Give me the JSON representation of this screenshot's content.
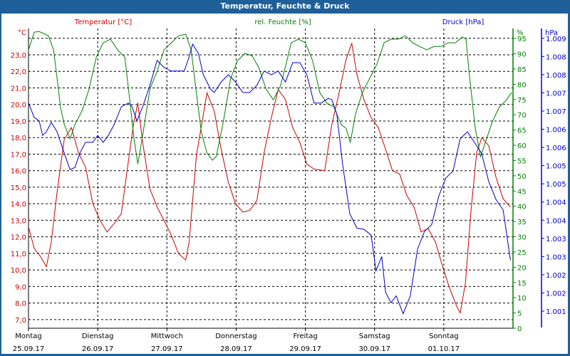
{
  "window": {
    "title": "Temperatur, Feuchte & Druck"
  },
  "colors": {
    "temperature": "#cc0000",
    "humidity": "#008000",
    "pressure": "#0000cc",
    "frame": "#1f5f99"
  },
  "chart_data": {
    "type": "line",
    "title": "Temperatur, Feuchte & Druck",
    "x_unit": "hours since Montag 25.09.17 00:00",
    "xlim": [
      0,
      168
    ],
    "days": [
      {
        "name": "Montag",
        "date": "25.09.17"
      },
      {
        "name": "Dienstag",
        "date": "26.09.17"
      },
      {
        "name": "Mittwoch",
        "date": "27.09.17"
      },
      {
        "name": "Donnerstag",
        "date": "28.09.17"
      },
      {
        "name": "Freitag",
        "date": "29.09.17"
      },
      {
        "name": "Samstag",
        "date": "30.09.17"
      },
      {
        "name": "Sonntag",
        "date": "01.10.17"
      }
    ],
    "grid": true,
    "axes": {
      "temperature": {
        "label": "Temperatur [°C]",
        "unit": "°C",
        "ylim": [
          6.48,
          24.59
        ],
        "ticks": [
          7,
          8,
          9,
          10,
          11,
          12,
          13,
          14,
          15,
          16,
          17,
          18,
          19,
          20,
          21,
          22,
          23
        ],
        "tick_labels": [
          "7,0",
          "8,0",
          "9,0",
          "10,0",
          "11,0",
          "12,0",
          "13,0",
          "14,0",
          "15,0",
          "16,0",
          "17,0",
          "18,0",
          "19,0",
          "20,0",
          "21,0",
          "22,0",
          "23,0"
        ],
        "grid_values": [
          7,
          8,
          9,
          10,
          11,
          12,
          13,
          14,
          15,
          16,
          17,
          18,
          19,
          20,
          21,
          22,
          23,
          24
        ]
      },
      "humidity": {
        "label": "rel. Feuchte [%]",
        "unit": "%",
        "ylim": [
          0,
          98.3
        ],
        "ticks": [
          0,
          5,
          10,
          15,
          20,
          25,
          30,
          35,
          40,
          45,
          50,
          55,
          60,
          65,
          70,
          75,
          80,
          85,
          90,
          95
        ],
        "tick_labels": [
          "0",
          "5",
          "10",
          "15",
          "20",
          "25",
          "30",
          "35",
          "40",
          "45",
          "50",
          "55",
          "60",
          "65",
          "70",
          "75",
          "80",
          "85",
          "90",
          "95"
        ]
      },
      "pressure": {
        "label": "Druck [hPa]",
        "unit": "hPa",
        "ylim": [
          1000.93,
          1009.17
        ],
        "ticks": [
          1008.9,
          1008.4,
          1007.9,
          1007.4,
          1006.9,
          1006.4,
          1005.9,
          1005.4,
          1004.9,
          1004.4,
          1003.9,
          1003.4,
          1002.9,
          1002.4,
          1001.9,
          1001.4
        ],
        "tick_labels": [
          "1.009",
          "1.008",
          "1.008",
          "1.007",
          "1.007",
          "1.006",
          "1.006",
          "1.005",
          "1.005",
          "1.004",
          "1.004",
          "1.003",
          "1.003",
          "1.002",
          "1.002",
          "1.001"
        ]
      }
    },
    "series": [
      {
        "name": "Temperatur",
        "axis": "temperature",
        "points": [
          [
            0,
            12.6
          ],
          [
            2,
            11.3
          ],
          [
            4.2,
            10.8
          ],
          [
            6.2,
            10.2
          ],
          [
            7.9,
            11.7
          ],
          [
            9.9,
            14.7
          ],
          [
            12.4,
            17.9
          ],
          [
            14.9,
            18.6
          ],
          [
            17.3,
            17.1
          ],
          [
            19.8,
            16.2
          ],
          [
            22.3,
            14.0
          ],
          [
            24.8,
            13.0
          ],
          [
            27.2,
            12.3
          ],
          [
            29.7,
            12.8
          ],
          [
            32.2,
            13.4
          ],
          [
            34.2,
            16.0
          ],
          [
            36.4,
            18.8
          ],
          [
            37.9,
            20.1
          ],
          [
            39.6,
            17.7
          ],
          [
            42.1,
            14.9
          ],
          [
            44.6,
            13.8
          ],
          [
            47.0,
            13.0
          ],
          [
            49.5,
            12.1
          ],
          [
            52.0,
            11.0
          ],
          [
            54.5,
            10.6
          ],
          [
            55.7,
            11.7
          ],
          [
            58.2,
            16.9
          ],
          [
            61.9,
            20.7
          ],
          [
            64.4,
            19.6
          ],
          [
            66.8,
            17.3
          ],
          [
            69.3,
            15.3
          ],
          [
            71.8,
            14.0
          ],
          [
            74.3,
            13.5
          ],
          [
            76.7,
            13.6
          ],
          [
            79.2,
            14.2
          ],
          [
            81.7,
            17.1
          ],
          [
            84.2,
            19.2
          ],
          [
            86.6,
            20.9
          ],
          [
            89.1,
            20.3
          ],
          [
            91.6,
            18.6
          ],
          [
            94.1,
            17.7
          ],
          [
            96.5,
            16.4
          ],
          [
            99.0,
            16.1
          ],
          [
            102.7,
            16.0
          ],
          [
            105.2,
            18.8
          ],
          [
            107.7,
            20.7
          ],
          [
            110.1,
            22.7
          ],
          [
            112.1,
            23.7
          ],
          [
            113.9,
            21.8
          ],
          [
            116.3,
            20.3
          ],
          [
            118.8,
            19.2
          ],
          [
            121.3,
            18.6
          ],
          [
            123.8,
            17.3
          ],
          [
            126.2,
            16.0
          ],
          [
            128.7,
            15.8
          ],
          [
            131.2,
            14.5
          ],
          [
            133.7,
            13.8
          ],
          [
            136.1,
            12.3
          ],
          [
            138.6,
            12.5
          ],
          [
            141.1,
            11.7
          ],
          [
            143.6,
            10.2
          ],
          [
            146.0,
            8.9
          ],
          [
            148.5,
            7.8
          ],
          [
            149.7,
            7.4
          ],
          [
            151.5,
            9.2
          ],
          [
            153.4,
            13.5
          ],
          [
            155.4,
            17.1
          ],
          [
            157.2,
            18.0
          ],
          [
            159.6,
            17.5
          ],
          [
            162.1,
            15.6
          ],
          [
            164.6,
            14.3
          ],
          [
            167.1,
            13.8
          ]
        ]
      },
      {
        "name": "rel. Feuchte",
        "axis": "humidity",
        "points": [
          [
            0,
            91.3
          ],
          [
            2,
            97.1
          ],
          [
            3.7,
            97.3
          ],
          [
            6.9,
            95.9
          ],
          [
            8.7,
            91.3
          ],
          [
            9.9,
            81.9
          ],
          [
            11.1,
            72.6
          ],
          [
            12.4,
            66.8
          ],
          [
            14.4,
            62.1
          ],
          [
            16.1,
            66.8
          ],
          [
            18.6,
            71.4
          ],
          [
            21.0,
            78.4
          ],
          [
            23.5,
            88.9
          ],
          [
            25.9,
            93.6
          ],
          [
            28.4,
            94.8
          ],
          [
            30.9,
            91.3
          ],
          [
            33.4,
            88.9
          ],
          [
            35.1,
            74.9
          ],
          [
            36.6,
            62.1
          ],
          [
            37.9,
            53.9
          ],
          [
            39.6,
            63.3
          ],
          [
            42.1,
            78.4
          ],
          [
            44.6,
            84.3
          ],
          [
            47.0,
            91.3
          ],
          [
            49.5,
            93.6
          ],
          [
            52.0,
            95.9
          ],
          [
            54.5,
            96.4
          ],
          [
            56.4,
            91.3
          ],
          [
            58.2,
            77.3
          ],
          [
            59.9,
            64.4
          ],
          [
            61.9,
            57.4
          ],
          [
            63.8,
            55.1
          ],
          [
            65.1,
            56.3
          ],
          [
            67.6,
            67.9
          ],
          [
            70.1,
            81.9
          ],
          [
            72.5,
            87.8
          ],
          [
            75.0,
            90.1
          ],
          [
            77.5,
            89.4
          ],
          [
            79.9,
            85.4
          ],
          [
            82.4,
            78.4
          ],
          [
            84.9,
            74.9
          ],
          [
            87.4,
            79.6
          ],
          [
            89.3,
            86.6
          ],
          [
            91.1,
            93.6
          ],
          [
            93.6,
            94.8
          ],
          [
            96.0,
            93.6
          ],
          [
            98.5,
            87.8
          ],
          [
            101.0,
            77.3
          ],
          [
            103.5,
            73.8
          ],
          [
            105.9,
            72.6
          ],
          [
            108.4,
            66.8
          ],
          [
            110.1,
            65.6
          ],
          [
            111.6,
            60.9
          ],
          [
            113.4,
            70.3
          ],
          [
            115.8,
            77.3
          ],
          [
            118.3,
            81.9
          ],
          [
            120.8,
            86.6
          ],
          [
            123.3,
            93.6
          ],
          [
            125.7,
            94.8
          ],
          [
            128.2,
            94.8
          ],
          [
            130.7,
            95.9
          ],
          [
            133.2,
            93.6
          ],
          [
            135.6,
            92.4
          ],
          [
            138.1,
            91.3
          ],
          [
            140.6,
            92.4
          ],
          [
            143.1,
            92.4
          ],
          [
            145.5,
            93.6
          ],
          [
            148.0,
            93.6
          ],
          [
            150.5,
            95.5
          ],
          [
            151.7,
            94.8
          ],
          [
            153.0,
            81.9
          ],
          [
            154.9,
            65.6
          ],
          [
            156.7,
            56.3
          ],
          [
            158.4,
            60.9
          ],
          [
            160.9,
            67.9
          ],
          [
            163.3,
            72.6
          ],
          [
            165.8,
            74.9
          ],
          [
            167.5,
            77.3
          ]
        ]
      },
      {
        "name": "Druck",
        "axis": "pressure",
        "points": [
          [
            0,
            1007.12
          ],
          [
            2,
            1006.72
          ],
          [
            3.7,
            1006.63
          ],
          [
            4.9,
            1006.23
          ],
          [
            6.2,
            1006.33
          ],
          [
            7.9,
            1006.59
          ],
          [
            9.9,
            1006.33
          ],
          [
            12.4,
            1005.74
          ],
          [
            14.4,
            1005.29
          ],
          [
            16.1,
            1005.35
          ],
          [
            17.8,
            1005.74
          ],
          [
            19.8,
            1006.04
          ],
          [
            22.3,
            1006.04
          ],
          [
            24.0,
            1006.23
          ],
          [
            25.9,
            1006.04
          ],
          [
            27.7,
            1006.23
          ],
          [
            29.7,
            1006.53
          ],
          [
            32.2,
            1007.02
          ],
          [
            34.7,
            1007.12
          ],
          [
            35.9,
            1007.02
          ],
          [
            37.6,
            1006.63
          ],
          [
            39.6,
            1007.02
          ],
          [
            42.1,
            1007.61
          ],
          [
            44.6,
            1008.29
          ],
          [
            47.0,
            1008.1
          ],
          [
            49.5,
            1008.0
          ],
          [
            52.0,
            1008.0
          ],
          [
            54.0,
            1008.0
          ],
          [
            55.7,
            1008.39
          ],
          [
            56.9,
            1008.74
          ],
          [
            58.9,
            1008.49
          ],
          [
            60.6,
            1007.9
          ],
          [
            63.1,
            1007.51
          ],
          [
            64.4,
            1007.41
          ],
          [
            66.8,
            1007.7
          ],
          [
            69.3,
            1007.9
          ],
          [
            71.8,
            1007.7
          ],
          [
            74.3,
            1007.41
          ],
          [
            76.7,
            1007.41
          ],
          [
            79.2,
            1007.61
          ],
          [
            81.7,
            1008.0
          ],
          [
            84.2,
            1007.9
          ],
          [
            86.6,
            1008.0
          ],
          [
            89.1,
            1007.7
          ],
          [
            91.6,
            1008.23
          ],
          [
            94.1,
            1008.23
          ],
          [
            96.5,
            1007.9
          ],
          [
            99.0,
            1007.12
          ],
          [
            101.5,
            1007.12
          ],
          [
            104.0,
            1007.25
          ],
          [
            105.2,
            1007.21
          ],
          [
            106.9,
            1006.82
          ],
          [
            108.9,
            1005.45
          ],
          [
            111.4,
            1004.08
          ],
          [
            113.9,
            1003.68
          ],
          [
            116.3,
            1003.65
          ],
          [
            118.8,
            1003.49
          ],
          [
            120.5,
            1002.51
          ],
          [
            122.5,
            1002.9
          ],
          [
            123.8,
            1001.92
          ],
          [
            125.7,
            1001.63
          ],
          [
            127.5,
            1001.82
          ],
          [
            129.9,
            1001.33
          ],
          [
            132.4,
            1001.82
          ],
          [
            134.9,
            1003.1
          ],
          [
            137.3,
            1003.59
          ],
          [
            139.8,
            1003.78
          ],
          [
            142.3,
            1004.57
          ],
          [
            144.7,
            1005.06
          ],
          [
            147.2,
            1005.25
          ],
          [
            149.7,
            1006.14
          ],
          [
            152.2,
            1006.33
          ],
          [
            154.6,
            1006.04
          ],
          [
            157.1,
            1005.74
          ],
          [
            159.6,
            1004.96
          ],
          [
            162.1,
            1004.47
          ],
          [
            164.6,
            1004.18
          ],
          [
            167.1,
            1002.8
          ]
        ]
      }
    ]
  }
}
